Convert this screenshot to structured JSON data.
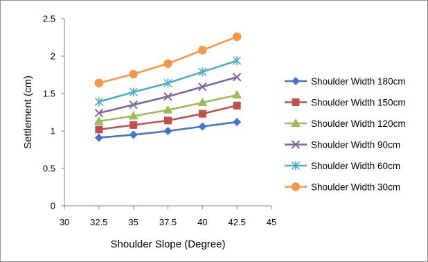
{
  "chart_data": {
    "type": "line",
    "title": "",
    "xlabel": "Shoulder Slope (Degree)",
    "ylabel": "Settlement (cm)",
    "xlim": [
      30,
      45
    ],
    "ylim": [
      0,
      2.5
    ],
    "x_ticks": [
      "30",
      "32.5",
      "35",
      "37.5",
      "40",
      "42.5",
      "45"
    ],
    "y_ticks": [
      "0",
      "0.5",
      "1",
      "1.5",
      "2",
      "2.5"
    ],
    "grid": false,
    "legend_position": "right",
    "x": [
      32.5,
      35,
      37.5,
      40,
      42.5
    ],
    "series": [
      {
        "name": "Shoulder Width 180cm",
        "color": "#4472C4",
        "marker": "diamond",
        "values": [
          0.91,
          0.95,
          1.0,
          1.06,
          1.12
        ]
      },
      {
        "name": "Shoulder Width 150cm",
        "color": "#C0504D",
        "marker": "square",
        "values": [
          1.02,
          1.08,
          1.14,
          1.23,
          1.34
        ]
      },
      {
        "name": "Shoulder Width 120cm",
        "color": "#9BBB59",
        "marker": "triangle",
        "values": [
          1.13,
          1.2,
          1.28,
          1.38,
          1.48
        ]
      },
      {
        "name": "Shoulder Width 90cm",
        "color": "#8064A2",
        "marker": "x",
        "values": [
          1.24,
          1.35,
          1.46,
          1.59,
          1.72
        ]
      },
      {
        "name": "Shoulder Width 60cm",
        "color": "#4BACC6",
        "marker": "asterisk",
        "values": [
          1.39,
          1.52,
          1.64,
          1.79,
          1.94
        ]
      },
      {
        "name": "Shoulder Width 30cm",
        "color": "#F79646",
        "marker": "circle",
        "values": [
          1.64,
          1.76,
          1.9,
          2.08,
          2.26
        ]
      }
    ]
  }
}
